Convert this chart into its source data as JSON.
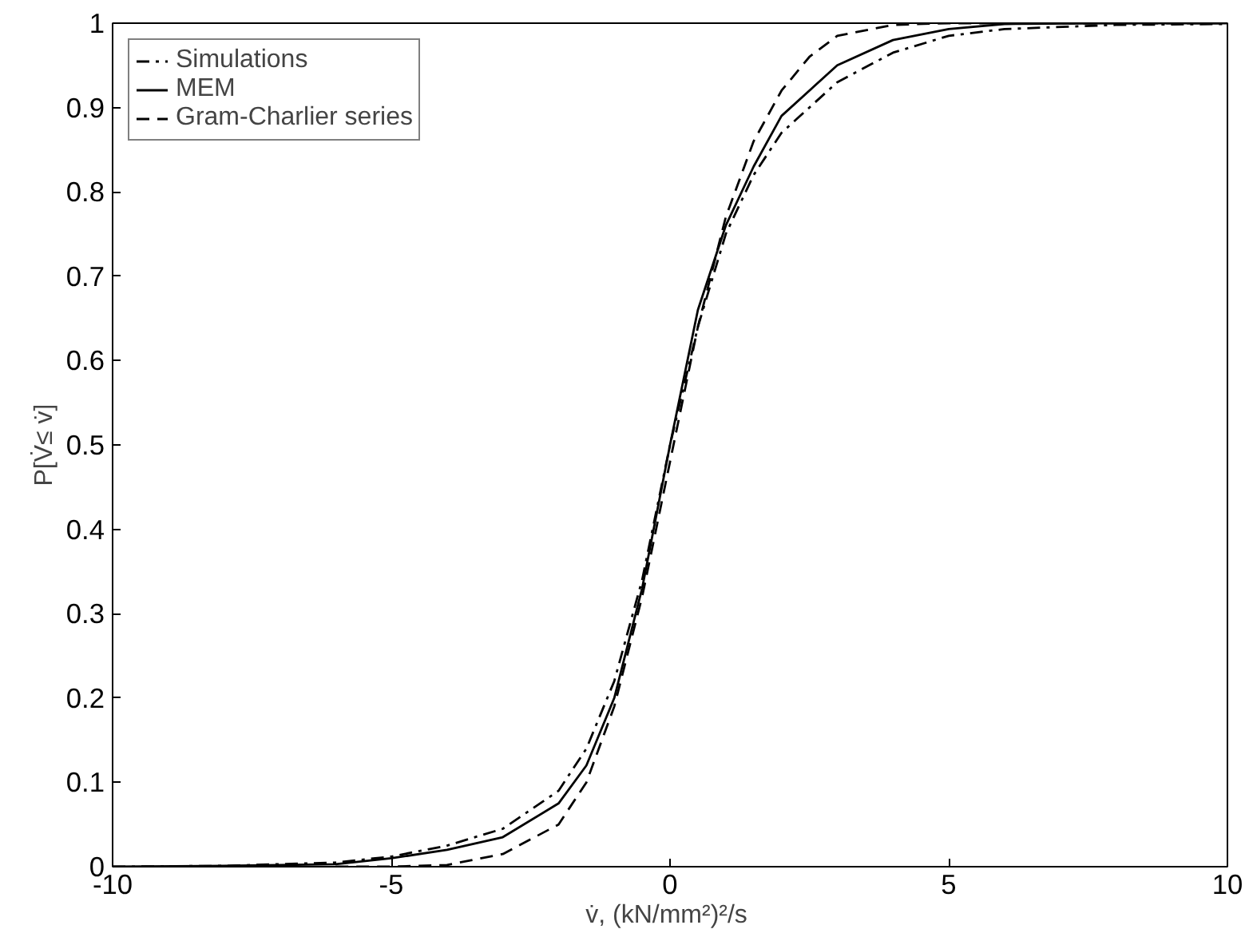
{
  "chart_data": {
    "type": "line",
    "xlabel": "v̇,  (kN/mm²)²/s",
    "ylabel": "P[V̇≤ v̇]",
    "xlim": [
      -10,
      10
    ],
    "ylim": [
      0,
      1
    ],
    "xticks": [
      -10,
      -5,
      0,
      5,
      10
    ],
    "yticks": [
      0,
      0.1,
      0.2,
      0.3,
      0.4,
      0.5,
      0.6,
      0.7,
      0.8,
      0.9,
      1
    ],
    "grid": false,
    "legend": "top left",
    "series": [
      {
        "name": "Simulations",
        "color": "#000000",
        "line_style": "dashdot",
        "x": [
          -10,
          -8,
          -6,
          -5,
          -4,
          -3,
          -2,
          -1.5,
          -1,
          -0.5,
          0,
          0.5,
          1,
          1.5,
          2,
          3,
          4,
          5,
          6,
          8,
          10
        ],
        "values": [
          0,
          0.001,
          0.005,
          0.012,
          0.025,
          0.045,
          0.09,
          0.14,
          0.22,
          0.34,
          0.5,
          0.64,
          0.75,
          0.82,
          0.87,
          0.93,
          0.965,
          0.985,
          0.993,
          0.998,
          0.999
        ]
      },
      {
        "name": "MEM",
        "color": "#000000",
        "line_style": "solid",
        "x": [
          -10,
          -8,
          -6,
          -5,
          -4,
          -3,
          -2,
          -1.5,
          -1,
          -0.5,
          0,
          0.5,
          1,
          1.5,
          2,
          3,
          4,
          5,
          6,
          8,
          10
        ],
        "values": [
          0,
          0.001,
          0.003,
          0.01,
          0.02,
          0.035,
          0.075,
          0.12,
          0.2,
          0.33,
          0.5,
          0.66,
          0.76,
          0.83,
          0.89,
          0.95,
          0.98,
          0.993,
          0.999,
          1,
          1
        ]
      },
      {
        "name": "Gram-Charlier series",
        "color": "#000000",
        "line_style": "dashed",
        "x": [
          -6,
          -5,
          -4,
          -3,
          -2,
          -1.5,
          -1,
          -0.5,
          0,
          0.5,
          1,
          1.5,
          2,
          2.5,
          3,
          4,
          5,
          10
        ],
        "values": [
          0,
          0,
          0.002,
          0.015,
          0.05,
          0.1,
          0.19,
          0.32,
          0.48,
          0.64,
          0.77,
          0.86,
          0.92,
          0.96,
          0.985,
          0.998,
          1,
          1
        ]
      }
    ]
  }
}
